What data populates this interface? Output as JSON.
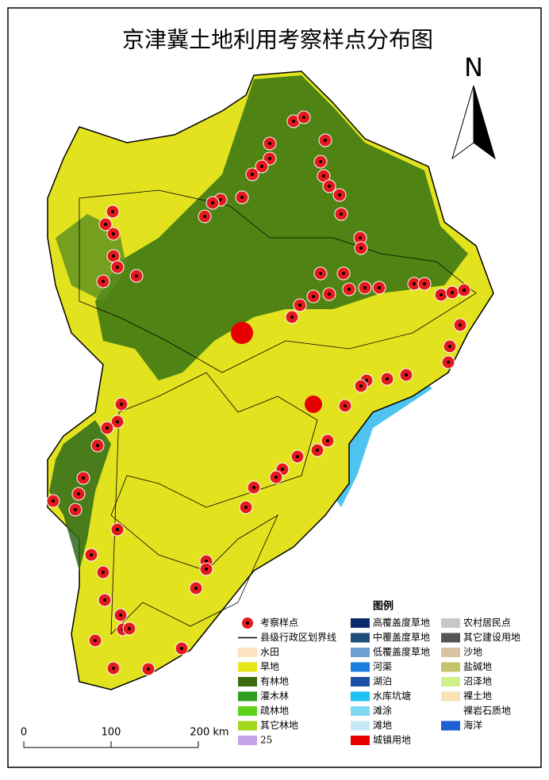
{
  "title": "京津冀土地利用考察样点分布图",
  "north_arrow": "N",
  "legend": {
    "title": "图例",
    "columns": [
      [
        {
          "label": "考察样点",
          "color": "#e31a1c",
          "symbol": "point"
        },
        {
          "label": "县级行政区划界线",
          "color": "#000000",
          "symbol": "line"
        },
        {
          "label": "水田",
          "color": "#fbe3c0"
        },
        {
          "label": "旱地",
          "color": "#e6e619"
        },
        {
          "label": "有林地",
          "color": "#3a6b0f"
        },
        {
          "label": "灌木林",
          "color": "#2e9e1f"
        },
        {
          "label": "疏林地",
          "color": "#5fd11a"
        },
        {
          "label": "其它林地",
          "color": "#a3d81c"
        },
        {
          "label": "25",
          "color": "#c5a3e8"
        }
      ],
      [
        {
          "label": "高覆盖度草地",
          "color": "#0b2a6b"
        },
        {
          "label": "中覆盖度草地",
          "color": "#1f4e79"
        },
        {
          "label": "低覆盖度草地",
          "color": "#6f9fd1"
        },
        {
          "label": "河渠",
          "color": "#1a7fe0"
        },
        {
          "label": "湖泊",
          "color": "#1c4fa6"
        },
        {
          "label": "水库坑塘",
          "color": "#19c2f0"
        },
        {
          "label": "滩涂",
          "color": "#7fd8f2"
        },
        {
          "label": "滩地",
          "color": "#c9e8f7"
        },
        {
          "label": "城镇用地",
          "color": "#e60000"
        }
      ],
      [
        {
          "label": "农村居民点",
          "color": "#c8c8c8"
        },
        {
          "label": "其它建设用地",
          "color": "#555555"
        },
        {
          "label": "沙地",
          "color": "#d8c3a0"
        },
        {
          "label": "盐碱地",
          "color": "#c6c46a"
        },
        {
          "label": "沼泽地",
          "color": "#cdf08a"
        },
        {
          "label": "裸土地",
          "color": "#f9e3b5"
        },
        {
          "label": "裸岩石质地",
          "color": "#ffffff"
        },
        {
          "label": "海洋",
          "color": "#1f5fd6"
        }
      ]
    ]
  },
  "scale_bar": {
    "labels": [
      "0",
      "100",
      "200 km"
    ]
  }
}
